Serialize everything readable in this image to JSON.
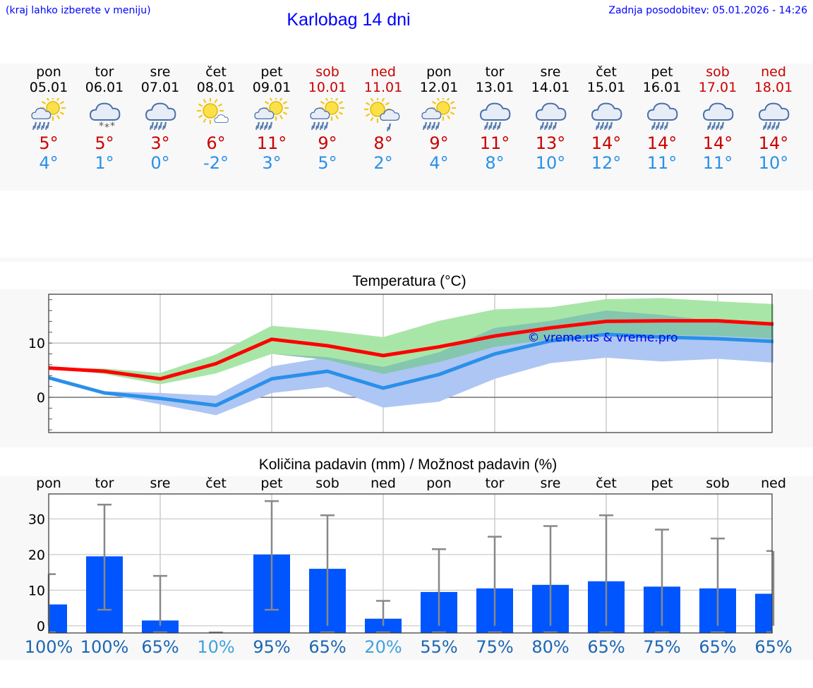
{
  "header": {
    "hint": "(kraj lahko izberete v meniju)",
    "title": "Karlobag 14 dni",
    "updated": "Zadnja posodobitev: 05.01.2026 - 14:26"
  },
  "days": [
    {
      "name": "pon",
      "date": "05.01",
      "weekend": false,
      "icon": "sun-cloud-rain-icon",
      "tmax": "5°",
      "tmin": "4°"
    },
    {
      "name": "tor",
      "date": "06.01",
      "weekend": false,
      "icon": "cloud-snow-icon",
      "tmax": "5°",
      "tmin": "1°"
    },
    {
      "name": "sre",
      "date": "07.01",
      "weekend": false,
      "icon": "cloud-rain-icon",
      "tmax": "3°",
      "tmin": "0°"
    },
    {
      "name": "čet",
      "date": "08.01",
      "weekend": false,
      "icon": "sun-small-cloud-icon",
      "tmax": "6°",
      "tmin": "-2°"
    },
    {
      "name": "pet",
      "date": "09.01",
      "weekend": false,
      "icon": "sun-cloud-rain-icon",
      "tmax": "11°",
      "tmin": "3°"
    },
    {
      "name": "sob",
      "date": "10.01",
      "weekend": true,
      "icon": "sun-cloud-rain-icon",
      "tmax": "9°",
      "tmin": "5°"
    },
    {
      "name": "ned",
      "date": "11.01",
      "weekend": true,
      "icon": "sun-cloud-light-rain-icon",
      "tmax": "8°",
      "tmin": "2°"
    },
    {
      "name": "pon",
      "date": "12.01",
      "weekend": false,
      "icon": "sun-cloud-rain-icon",
      "tmax": "9°",
      "tmin": "4°"
    },
    {
      "name": "tor",
      "date": "13.01",
      "weekend": false,
      "icon": "cloud-rain-icon",
      "tmax": "11°",
      "tmin": "8°"
    },
    {
      "name": "sre",
      "date": "14.01",
      "weekend": false,
      "icon": "cloud-rain-icon",
      "tmax": "13°",
      "tmin": "10°"
    },
    {
      "name": "čet",
      "date": "15.01",
      "weekend": false,
      "icon": "cloud-rain-icon",
      "tmax": "14°",
      "tmin": "12°"
    },
    {
      "name": "pet",
      "date": "16.01",
      "weekend": false,
      "icon": "cloud-rain-icon",
      "tmax": "14°",
      "tmin": "11°"
    },
    {
      "name": "sob",
      "date": "17.01",
      "weekend": true,
      "icon": "cloud-rain-icon",
      "tmax": "14°",
      "tmin": "11°"
    },
    {
      "name": "ned",
      "date": "18.01",
      "weekend": true,
      "icon": "cloud-rain-icon",
      "tmax": "14°",
      "tmin": "10°"
    }
  ],
  "colors": {
    "title": "#0000ff",
    "weekend": "#cc0000",
    "max_line": "#ff0000",
    "min_line": "#2990ea",
    "max_band": "#a8e6a8",
    "min_band": "#aec6f3",
    "overlap_band": "#7fc0b0",
    "bar": "#0055ff",
    "whisker": "#888888",
    "pct_high": "#1d66b3",
    "pct_low": "#3ea2dd"
  },
  "chart_data": [
    {
      "type": "line",
      "title": "Temperatura (°C)",
      "watermark": "© vreme.us & vreme.pro",
      "x": [
        0,
        1,
        2,
        3,
        4,
        5,
        6,
        7,
        8,
        9,
        10,
        11,
        12,
        13
      ],
      "ylim": [
        -6.5,
        19
      ],
      "yticks": [
        0,
        10
      ],
      "grid": true,
      "series": [
        {
          "name": "max",
          "values": [
            5.4,
            4.8,
            3.4,
            6.2,
            10.7,
            9.5,
            7.7,
            9.3,
            11.3,
            12.8,
            14.0,
            14.1,
            14.1,
            13.5
          ]
        },
        {
          "name": "min",
          "values": [
            3.6,
            0.8,
            -0.2,
            -1.5,
            3.4,
            4.8,
            1.7,
            4.2,
            8.0,
            10.4,
            11.6,
            11.1,
            10.8,
            10.3
          ]
        }
      ],
      "bands": [
        {
          "name": "max_range",
          "low": [
            5.4,
            4.3,
            2.4,
            4.4,
            8.0,
            6.9,
            4.3,
            6.5,
            9.3,
            10.7,
            11.6,
            11.5,
            11.3,
            10.8
          ],
          "high": [
            5.4,
            5.3,
            4.5,
            7.9,
            13.2,
            12.3,
            11.1,
            14.1,
            16.2,
            16.6,
            18.1,
            18.3,
            17.7,
            17.2
          ]
        },
        {
          "name": "min_range",
          "low": [
            3.6,
            0.6,
            -1.3,
            -3.3,
            0.8,
            1.9,
            -1.9,
            -0.8,
            3.4,
            6.3,
            7.3,
            6.6,
            7.1,
            6.4
          ],
          "high": [
            3.6,
            1.1,
            0.8,
            0.3,
            5.7,
            7.4,
            5.6,
            8.3,
            12.8,
            14.1,
            16.0,
            15.2,
            14.0,
            13.4
          ]
        }
      ]
    },
    {
      "type": "bar",
      "title": "Količina padavin (mm) / Možnost padavin (%)",
      "categories": [
        "pon",
        "tor",
        "sre",
        "čet",
        "pet",
        "sob",
        "ned",
        "pon",
        "tor",
        "sre",
        "čet",
        "pet",
        "sob",
        "ned"
      ],
      "values": [
        6,
        19.5,
        1.5,
        0,
        20,
        16,
        2,
        9.5,
        10.5,
        11.5,
        12.5,
        11,
        10.5,
        9
      ],
      "err_low": [
        0,
        4.5,
        0,
        0,
        4.5,
        0,
        0,
        0,
        0,
        0,
        0,
        0,
        0,
        0
      ],
      "err_high": [
        14.5,
        34,
        14,
        0,
        35,
        31,
        7,
        21.5,
        25,
        28,
        31,
        27,
        24.5,
        21
      ],
      "probability": [
        "100%",
        "100%",
        "65%",
        "10%",
        "95%",
        "65%",
        "20%",
        "55%",
        "75%",
        "80%",
        "65%",
        "75%",
        "65%",
        "65%"
      ],
      "ylim": [
        -2,
        37
      ],
      "yticks": [
        0,
        10,
        20,
        30
      ],
      "grid": true
    }
  ]
}
